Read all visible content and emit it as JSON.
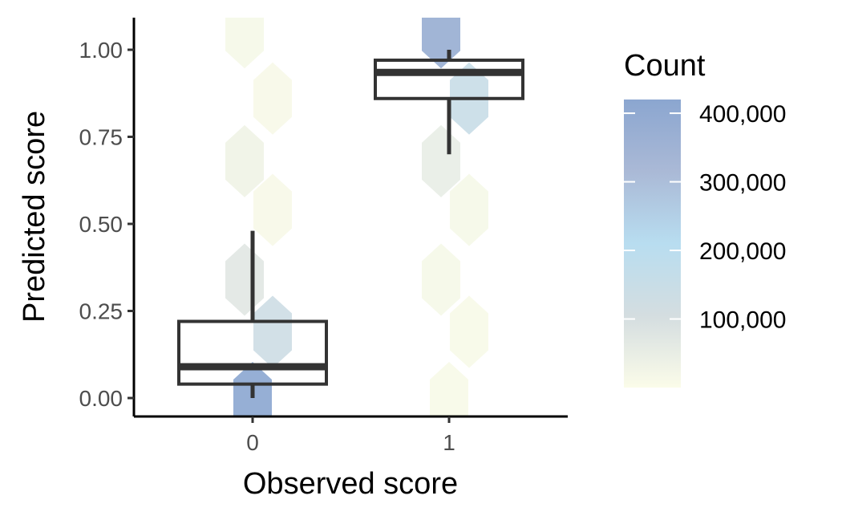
{
  "chart_data": {
    "type": "hexbin_boxplot",
    "xlabel": "Observed score",
    "ylabel": "Predicted score",
    "x_categories": [
      "0",
      "1"
    ],
    "y_ticks": [
      "0.00",
      "0.25",
      "0.50",
      "0.75",
      "1.00"
    ],
    "ylim": [
      -0.05,
      1.09
    ],
    "grid": false,
    "hexbins": [
      {
        "x": "0",
        "y": 1.05,
        "count": 15000
      },
      {
        "x": "0",
        "y": 0.86,
        "count": 12000
      },
      {
        "x": "0",
        "y": 0.68,
        "count": 30000
      },
      {
        "x": "0",
        "y": 0.54,
        "count": 12000
      },
      {
        "x": "0",
        "y": 0.34,
        "count": 70000
      },
      {
        "x": "0",
        "y": 0.19,
        "count": 130000
      },
      {
        "x": "0",
        "y": 0.0,
        "count": 420000
      },
      {
        "x": "1",
        "y": 1.05,
        "count": 380000
      },
      {
        "x": "1",
        "y": 0.86,
        "count": 150000
      },
      {
        "x": "1",
        "y": 0.68,
        "count": 50000
      },
      {
        "x": "1",
        "y": 0.54,
        "count": 15000
      },
      {
        "x": "1",
        "y": 0.34,
        "count": 15000
      },
      {
        "x": "1",
        "y": 0.19,
        "count": 10000
      },
      {
        "x": "1",
        "y": 0.0,
        "count": 10000
      }
    ],
    "boxplots": [
      {
        "x": "0",
        "whisker_low": 0.0,
        "q1": 0.04,
        "median": 0.09,
        "q3": 0.22,
        "whisker_high": 0.48
      },
      {
        "x": "1",
        "whisker_low": 0.7,
        "q1": 0.86,
        "median": 0.935,
        "q3": 0.97,
        "whisker_high": 1.0
      }
    ],
    "legend": {
      "title": "Count",
      "position": "right",
      "min": 0,
      "max": 420000,
      "ticks": [
        {
          "value": 400000,
          "label": "400,000"
        },
        {
          "value": 300000,
          "label": "300,000"
        },
        {
          "value": 200000,
          "label": "200,000"
        },
        {
          "value": 100000,
          "label": "100,000"
        }
      ],
      "colors": [
        "#fbfce9",
        "#d4dde0",
        "#b8ddf0",
        "#aab9d6",
        "#8ba6d0"
      ]
    }
  }
}
